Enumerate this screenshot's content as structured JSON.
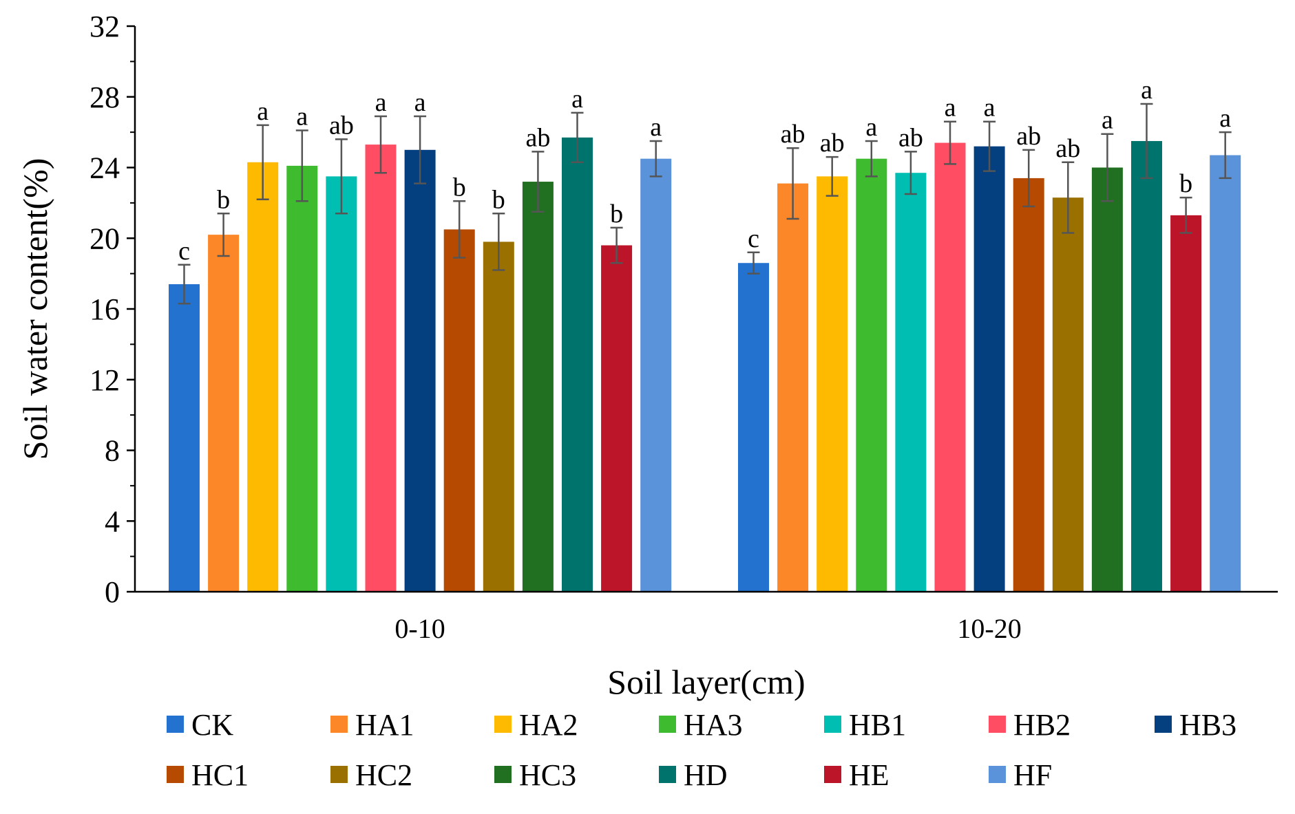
{
  "chart_data": {
    "type": "bar",
    "title": "",
    "xlabel": "Soil layer(cm)",
    "ylabel": "Soil water content(%)",
    "ylim": [
      0,
      32
    ],
    "yticks": [
      "0",
      "4",
      "8",
      "12",
      "16",
      "20",
      "24",
      "28",
      "32"
    ],
    "grid": false,
    "legend_position": "bottom",
    "categories": [
      "0-10",
      "10-20"
    ],
    "series": [
      {
        "name": "CK",
        "color": "#2372CF",
        "values": [
          17.4,
          18.6
        ],
        "errors": [
          1.1,
          0.6
        ],
        "letters": [
          "c",
          "c"
        ]
      },
      {
        "name": "HA1",
        "color": "#FC8728",
        "values": [
          20.2,
          23.1
        ],
        "errors": [
          1.2,
          2.0
        ],
        "letters": [
          "b",
          "ab"
        ]
      },
      {
        "name": "HA2",
        "color": "#FDBA00",
        "values": [
          24.3,
          23.5
        ],
        "errors": [
          2.1,
          1.1
        ],
        "letters": [
          "a",
          "ab"
        ]
      },
      {
        "name": "HA3",
        "color": "#3EBB2F",
        "values": [
          24.1,
          24.5
        ],
        "errors": [
          2.0,
          1.0
        ],
        "letters": [
          "a",
          "a"
        ]
      },
      {
        "name": "HB1",
        "color": "#00BEB2",
        "values": [
          23.5,
          23.7
        ],
        "errors": [
          2.1,
          1.2
        ],
        "letters": [
          "ab",
          "ab"
        ]
      },
      {
        "name": "HB2",
        "color": "#FF4D63",
        "values": [
          25.3,
          25.4
        ],
        "errors": [
          1.6,
          1.2
        ],
        "letters": [
          "a",
          "a"
        ]
      },
      {
        "name": "HB3",
        "color": "#043F7F",
        "values": [
          25.0,
          25.2
        ],
        "errors": [
          1.9,
          1.4
        ],
        "letters": [
          "a",
          "a"
        ]
      },
      {
        "name": "HC1",
        "color": "#B64A00",
        "values": [
          20.5,
          23.4
        ],
        "errors": [
          1.6,
          1.6
        ],
        "letters": [
          "b",
          "ab"
        ]
      },
      {
        "name": "HC2",
        "color": "#9A7100",
        "values": [
          19.8,
          22.3
        ],
        "errors": [
          1.6,
          2.0
        ],
        "letters": [
          "b",
          "ab"
        ]
      },
      {
        "name": "HC3",
        "color": "#217022",
        "values": [
          23.2,
          24.0
        ],
        "errors": [
          1.7,
          1.9
        ],
        "letters": [
          "ab",
          "a"
        ]
      },
      {
        "name": "HD",
        "color": "#00746C",
        "values": [
          25.7,
          25.5
        ],
        "errors": [
          1.4,
          2.1
        ],
        "letters": [
          "a",
          "a"
        ]
      },
      {
        "name": "HE",
        "color": "#BC1429",
        "values": [
          19.6,
          21.3
        ],
        "errors": [
          1.0,
          1.0
        ],
        "letters": [
          "b",
          "b"
        ]
      },
      {
        "name": "HF",
        "color": "#5B93DB",
        "values": [
          24.5,
          24.7
        ],
        "errors": [
          1.0,
          1.3
        ],
        "letters": [
          "a",
          "a"
        ]
      }
    ]
  }
}
